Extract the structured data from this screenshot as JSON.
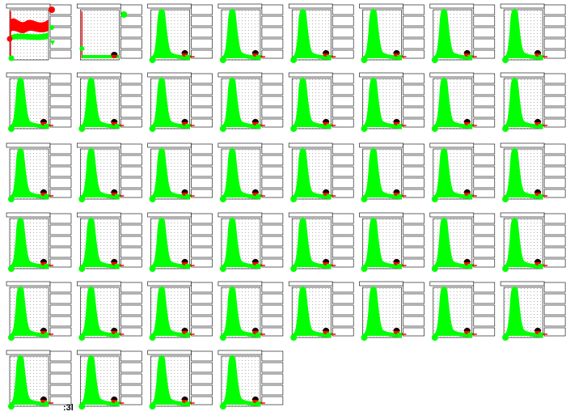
{
  "footer": {
    "label": ":3l"
  }
}
